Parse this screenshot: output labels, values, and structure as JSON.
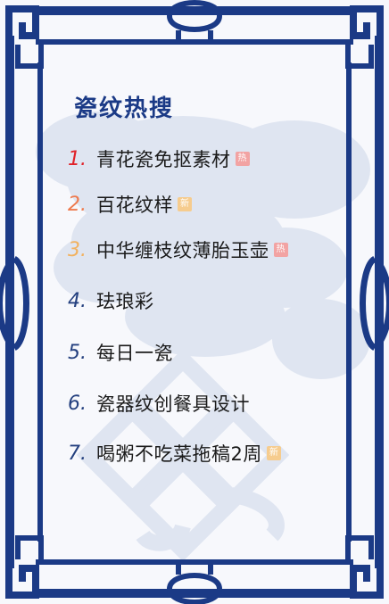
{
  "title": "瓷纹热搜",
  "colors": {
    "border": "#1b3a86",
    "watermark": "#dfe5f1",
    "rank_1": "#e0232a",
    "rank_2": "#ee7a4e",
    "rank_3": "#f2b15e",
    "rank_other": "#24407f",
    "hot_badge": "#f2a3a3",
    "new_badge": "#f6cc8e"
  },
  "items": [
    {
      "rank": "1.",
      "text": "青花瓷免抠素材",
      "badge": "热",
      "badge_type": "hot"
    },
    {
      "rank": "2.",
      "text": "百花纹样",
      "badge": "新",
      "badge_type": "new"
    },
    {
      "rank": "3.",
      "text": "中华缠枝纹薄胎玉壶",
      "badge": "热",
      "badge_type": "hot"
    },
    {
      "rank": "4.",
      "text": "珐琅彩",
      "badge": "",
      "badge_type": ""
    },
    {
      "rank": "5.",
      "text": "每日一瓷",
      "badge": "",
      "badge_type": ""
    },
    {
      "rank": "6.",
      "text": "瓷器纹创餐具设计",
      "badge": "",
      "badge_type": ""
    },
    {
      "rank": "7.",
      "text": "喝粥不吃菜拖稿2周",
      "badge": "新",
      "badge_type": "new"
    }
  ]
}
